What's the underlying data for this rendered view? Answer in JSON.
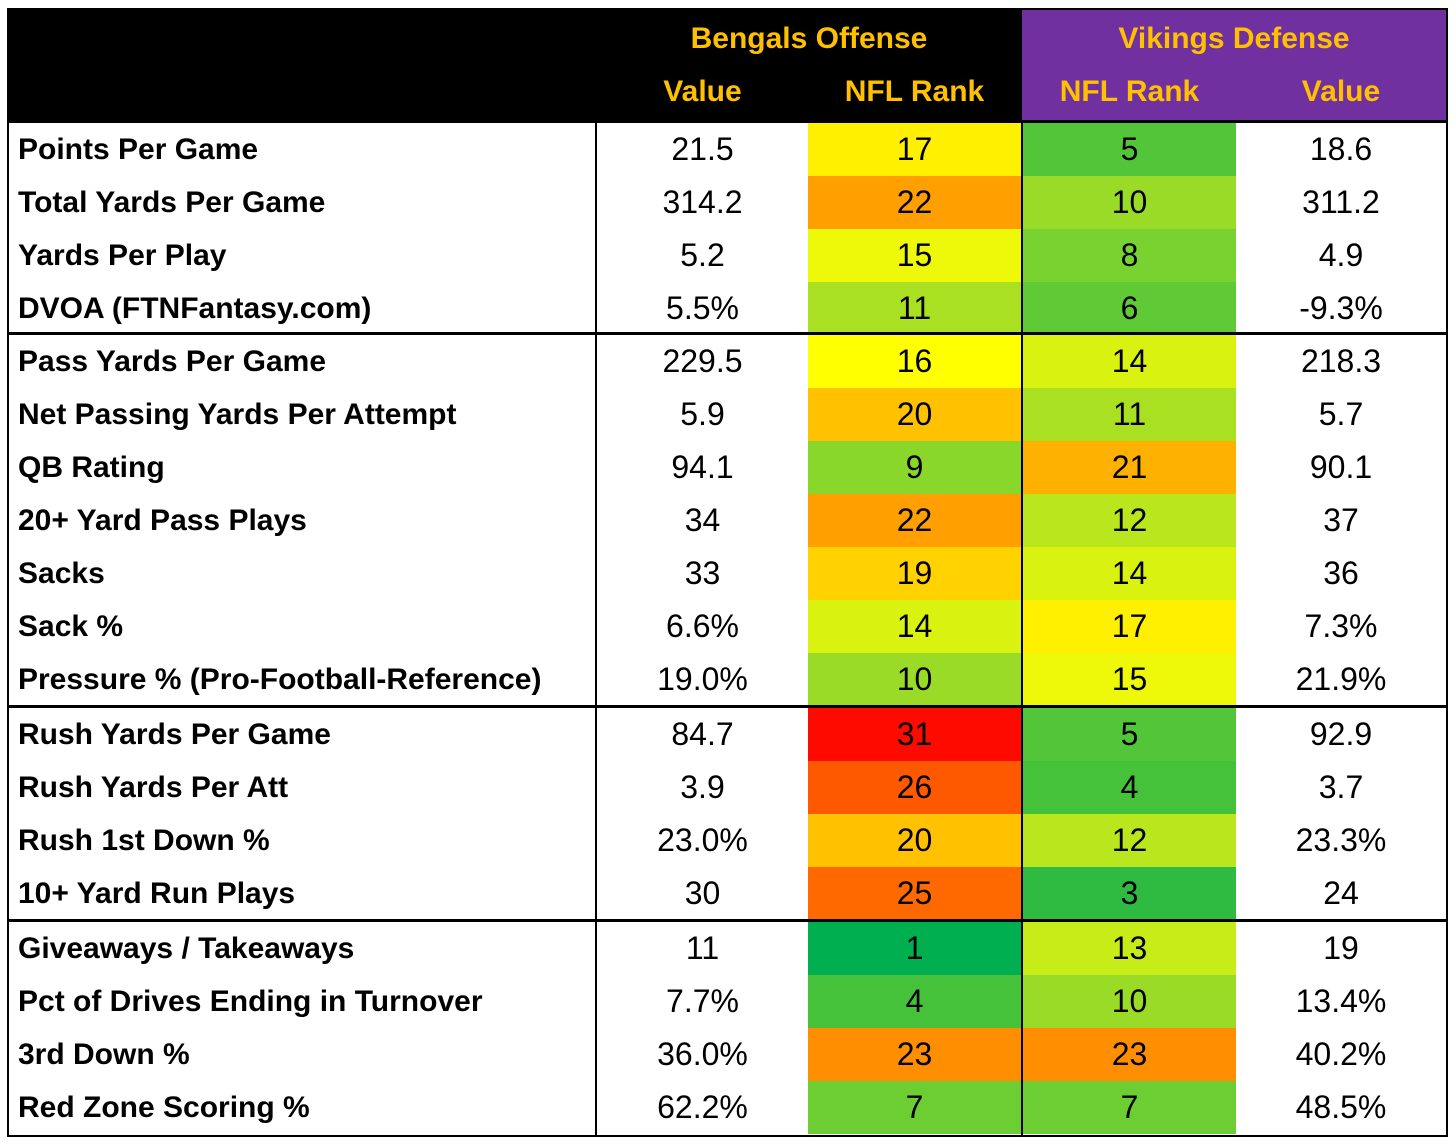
{
  "header": {
    "offense_title": "Bengals Offense",
    "defense_title": "Vikings Defense",
    "off_value_label": "Value",
    "off_rank_label": "NFL Rank",
    "def_rank_label": "NFL Rank",
    "def_value_label": "Value"
  },
  "colors": {
    "header_black": "#000000",
    "header_purple": "#7030a0",
    "header_text": "#ffc000"
  },
  "rows": [
    {
      "label": "Points Per Game",
      "off_value": "21.5",
      "off_rank": "17",
      "def_rank": "5",
      "def_value": "18.6"
    },
    {
      "label": "Total Yards Per Game",
      "off_value": "314.2",
      "off_rank": "22",
      "def_rank": "10",
      "def_value": "311.2"
    },
    {
      "label": "Yards Per Play",
      "off_value": "5.2",
      "off_rank": "15",
      "def_rank": "8",
      "def_value": "4.9"
    },
    {
      "label": "DVOA (FTNFantasy.com)",
      "off_value": "5.5%",
      "off_rank": "11",
      "def_rank": "6",
      "def_value": "-9.3%"
    },
    {
      "label": "Pass Yards Per Game",
      "off_value": "229.5",
      "off_rank": "16",
      "def_rank": "14",
      "def_value": "218.3"
    },
    {
      "label": "Net Passing Yards Per Attempt",
      "off_value": "5.9",
      "off_rank": "20",
      "def_rank": "11",
      "def_value": "5.7"
    },
    {
      "label": "QB Rating",
      "off_value": "94.1",
      "off_rank": "9",
      "def_rank": "21",
      "def_value": "90.1"
    },
    {
      "label": "20+ Yard Pass Plays",
      "off_value": "34",
      "off_rank": "22",
      "def_rank": "12",
      "def_value": "37"
    },
    {
      "label": "Sacks",
      "off_value": "33",
      "off_rank": "19",
      "def_rank": "14",
      "def_value": "36"
    },
    {
      "label": "Sack %",
      "off_value": "6.6%",
      "off_rank": "14",
      "def_rank": "17",
      "def_value": "7.3%"
    },
    {
      "label": "Pressure % (Pro-Football-Reference)",
      "off_value": "19.0%",
      "off_rank": "10",
      "def_rank": "15",
      "def_value": "21.9%"
    },
    {
      "label": "Rush Yards Per Game",
      "off_value": "84.7",
      "off_rank": "31",
      "def_rank": "5",
      "def_value": "92.9"
    },
    {
      "label": "Rush Yards Per Att",
      "off_value": "3.9",
      "off_rank": "26",
      "def_rank": "4",
      "def_value": "3.7"
    },
    {
      "label": "Rush 1st Down %",
      "off_value": "23.0%",
      "off_rank": "20",
      "def_rank": "12",
      "def_value": "23.3%"
    },
    {
      "label": "10+ Yard Run Plays",
      "off_value": "30",
      "off_rank": "25",
      "def_rank": "3",
      "def_value": "24"
    },
    {
      "label": "Giveaways / Takeaways",
      "off_value": "11",
      "off_rank": "1",
      "def_rank": "13",
      "def_value": "19"
    },
    {
      "label": "Pct of Drives Ending in Turnover",
      "off_value": "7.7%",
      "off_rank": "4",
      "def_rank": "10",
      "def_value": "13.4%"
    },
    {
      "label": "3rd Down %",
      "off_value": "36.0%",
      "off_rank": "23",
      "def_rank": "23",
      "def_value": "40.2%"
    },
    {
      "label": "Red Zone Scoring %",
      "off_value": "62.2%",
      "off_rank": "7",
      "def_rank": "7",
      "def_value": "48.5%"
    }
  ]
}
